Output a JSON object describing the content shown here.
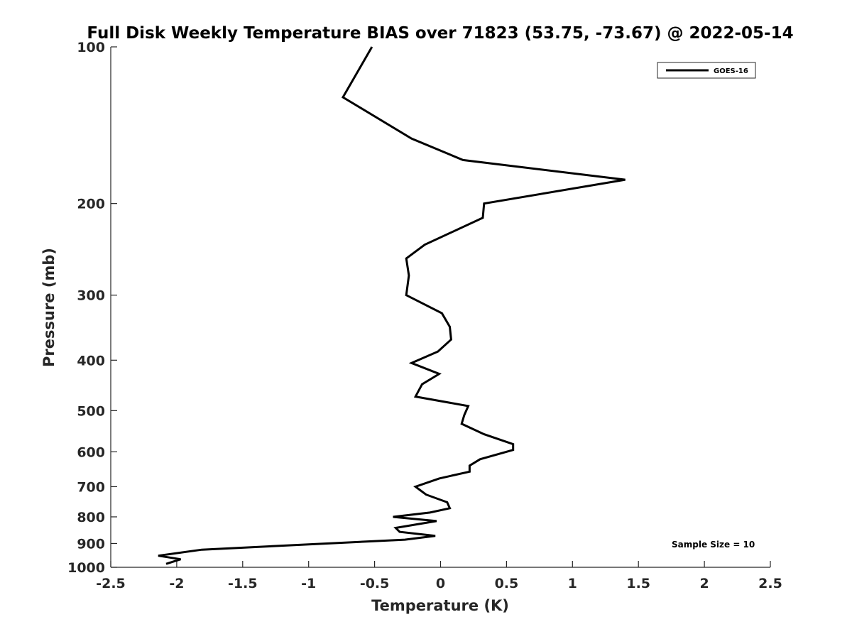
{
  "chart_data": {
    "type": "line",
    "title": "Full Disk Weekly Temperature BIAS over 71823 (53.75, -73.67) @ 2022-05-14",
    "xlabel": "Temperature (K)",
    "ylabel": "Pressure (mb)",
    "xlim": [
      -2.5,
      2.5
    ],
    "ylim": [
      100,
      1000
    ],
    "y_scale": "log",
    "y_reversed": true,
    "xticks": [
      "-2.5",
      "-2",
      "-1.5",
      "-1",
      "-0.5",
      "0",
      "0.5",
      "1",
      "1.5",
      "2",
      "2.5"
    ],
    "yticks": [
      "100",
      "200",
      "300",
      "400",
      "500",
      "600",
      "700",
      "800",
      "900",
      "1000"
    ],
    "grid": false,
    "legend_position": "top-right",
    "series": [
      {
        "name": "GOES-16",
        "color": "#000000",
        "points": [
          {
            "x": -0.52,
            "y": 100
          },
          {
            "x": -0.74,
            "y": 125
          },
          {
            "x": -0.22,
            "y": 150
          },
          {
            "x": 0.17,
            "y": 165
          },
          {
            "x": 1.4,
            "y": 180
          },
          {
            "x": 0.33,
            "y": 200
          },
          {
            "x": 0.32,
            "y": 213
          },
          {
            "x": -0.12,
            "y": 240
          },
          {
            "x": -0.26,
            "y": 255
          },
          {
            "x": -0.24,
            "y": 275
          },
          {
            "x": -0.26,
            "y": 300
          },
          {
            "x": 0.01,
            "y": 325
          },
          {
            "x": 0.07,
            "y": 345
          },
          {
            "x": 0.08,
            "y": 365
          },
          {
            "x": -0.02,
            "y": 385
          },
          {
            "x": -0.22,
            "y": 405
          },
          {
            "x": -0.01,
            "y": 425
          },
          {
            "x": -0.14,
            "y": 445
          },
          {
            "x": -0.19,
            "y": 470
          },
          {
            "x": 0.21,
            "y": 490
          },
          {
            "x": 0.18,
            "y": 510
          },
          {
            "x": 0.16,
            "y": 530
          },
          {
            "x": 0.33,
            "y": 555
          },
          {
            "x": 0.55,
            "y": 580
          },
          {
            "x": 0.55,
            "y": 595
          },
          {
            "x": 0.3,
            "y": 620
          },
          {
            "x": 0.22,
            "y": 638
          },
          {
            "x": 0.22,
            "y": 655
          },
          {
            "x": -0.01,
            "y": 675
          },
          {
            "x": -0.19,
            "y": 700
          },
          {
            "x": -0.11,
            "y": 725
          },
          {
            "x": 0.05,
            "y": 750
          },
          {
            "x": 0.07,
            "y": 770
          },
          {
            "x": -0.08,
            "y": 785
          },
          {
            "x": -0.36,
            "y": 800
          },
          {
            "x": -0.03,
            "y": 815
          },
          {
            "x": -0.34,
            "y": 840
          },
          {
            "x": -0.31,
            "y": 855
          },
          {
            "x": -0.04,
            "y": 870
          },
          {
            "x": -0.27,
            "y": 885
          },
          {
            "x": -1.81,
            "y": 925
          },
          {
            "x": -2.14,
            "y": 950
          },
          {
            "x": -1.97,
            "y": 965
          },
          {
            "x": -2.08,
            "y": 985
          }
        ]
      }
    ],
    "annotation": "Sample Size = 10"
  }
}
